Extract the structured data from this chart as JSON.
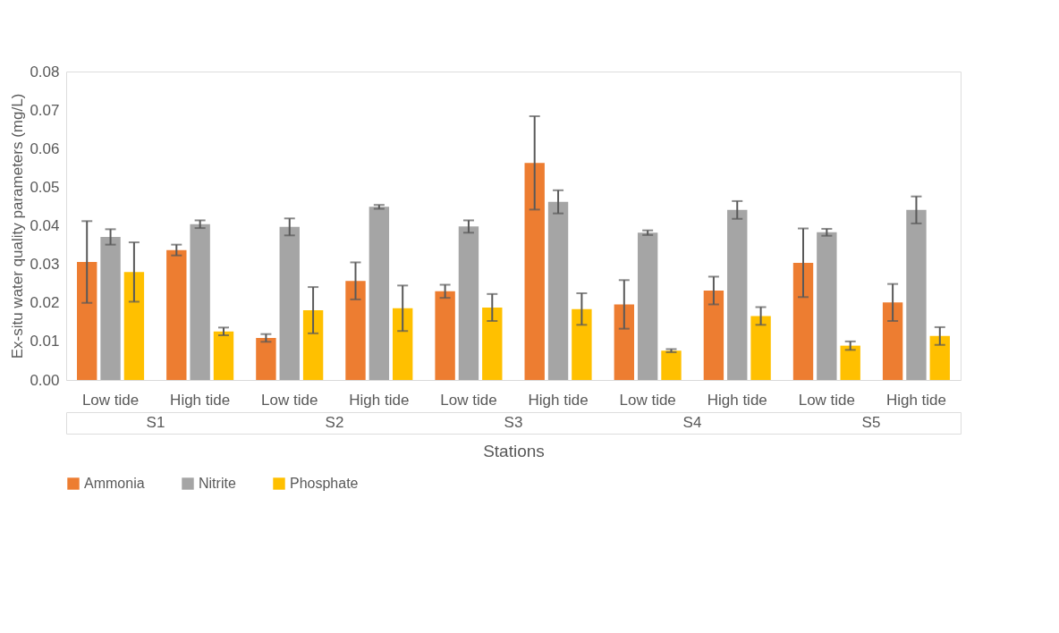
{
  "chart_data": {
    "type": "bar",
    "xlabel": "Stations",
    "ylabel": "Ex-situ water quality parameters (mg/L)",
    "categories": [
      "Low tide",
      "High tide",
      "Low tide",
      "High tide",
      "Low tide",
      "High tide",
      "Low tide",
      "High tide",
      "Low tide",
      "High tide"
    ],
    "annotations": [
      "S1",
      "S2",
      "S3",
      "S4",
      "S5"
    ],
    "series": [
      {
        "name": "Ammonia",
        "color": "#ed7d31",
        "values": [
          0.0306,
          0.0337,
          0.0109,
          0.0257,
          0.023,
          0.0563,
          0.0196,
          0.0232,
          0.0304,
          0.0201
        ],
        "errors": [
          0.0106,
          0.0014,
          0.001,
          0.0048,
          0.0017,
          0.0121,
          0.0063,
          0.0036,
          0.0089,
          0.0048
        ]
      },
      {
        "name": "Nitrite",
        "color": "#a5a5a5",
        "values": [
          0.0371,
          0.0404,
          0.0397,
          0.0449,
          0.0398,
          0.0462,
          0.0382,
          0.0441,
          0.0383,
          0.0441
        ],
        "errors": [
          0.002,
          0.001,
          0.0022,
          0.0005,
          0.0016,
          0.003,
          0.0006,
          0.0023,
          0.0009,
          0.0035
        ]
      },
      {
        "name": "Phosphate",
        "color": "#ffc000",
        "values": [
          0.028,
          0.0126,
          0.0181,
          0.0186,
          0.0188,
          0.0184,
          0.0076,
          0.0166,
          0.0089,
          0.0114
        ],
        "errors": [
          0.0077,
          0.001,
          0.006,
          0.0059,
          0.0035,
          0.0041,
          0.0004,
          0.0023,
          0.0011,
          0.0023
        ]
      }
    ],
    "ylim": [
      0,
      0.08
    ],
    "yticks": [
      {
        "value": 0,
        "label": "0.00"
      },
      {
        "value": 0.01,
        "label": "0.01"
      },
      {
        "value": 0.02,
        "label": "0.02"
      },
      {
        "value": 0.03,
        "label": "0.03"
      },
      {
        "value": 0.04,
        "label": "0.04"
      },
      {
        "value": 0.05,
        "label": "0.05"
      },
      {
        "value": 0.06,
        "label": "0.06"
      },
      {
        "value": 0.07,
        "label": "0.07"
      },
      {
        "value": 0.08,
        "label": "0.08"
      }
    ],
    "grid": false,
    "legend": "bottom"
  }
}
